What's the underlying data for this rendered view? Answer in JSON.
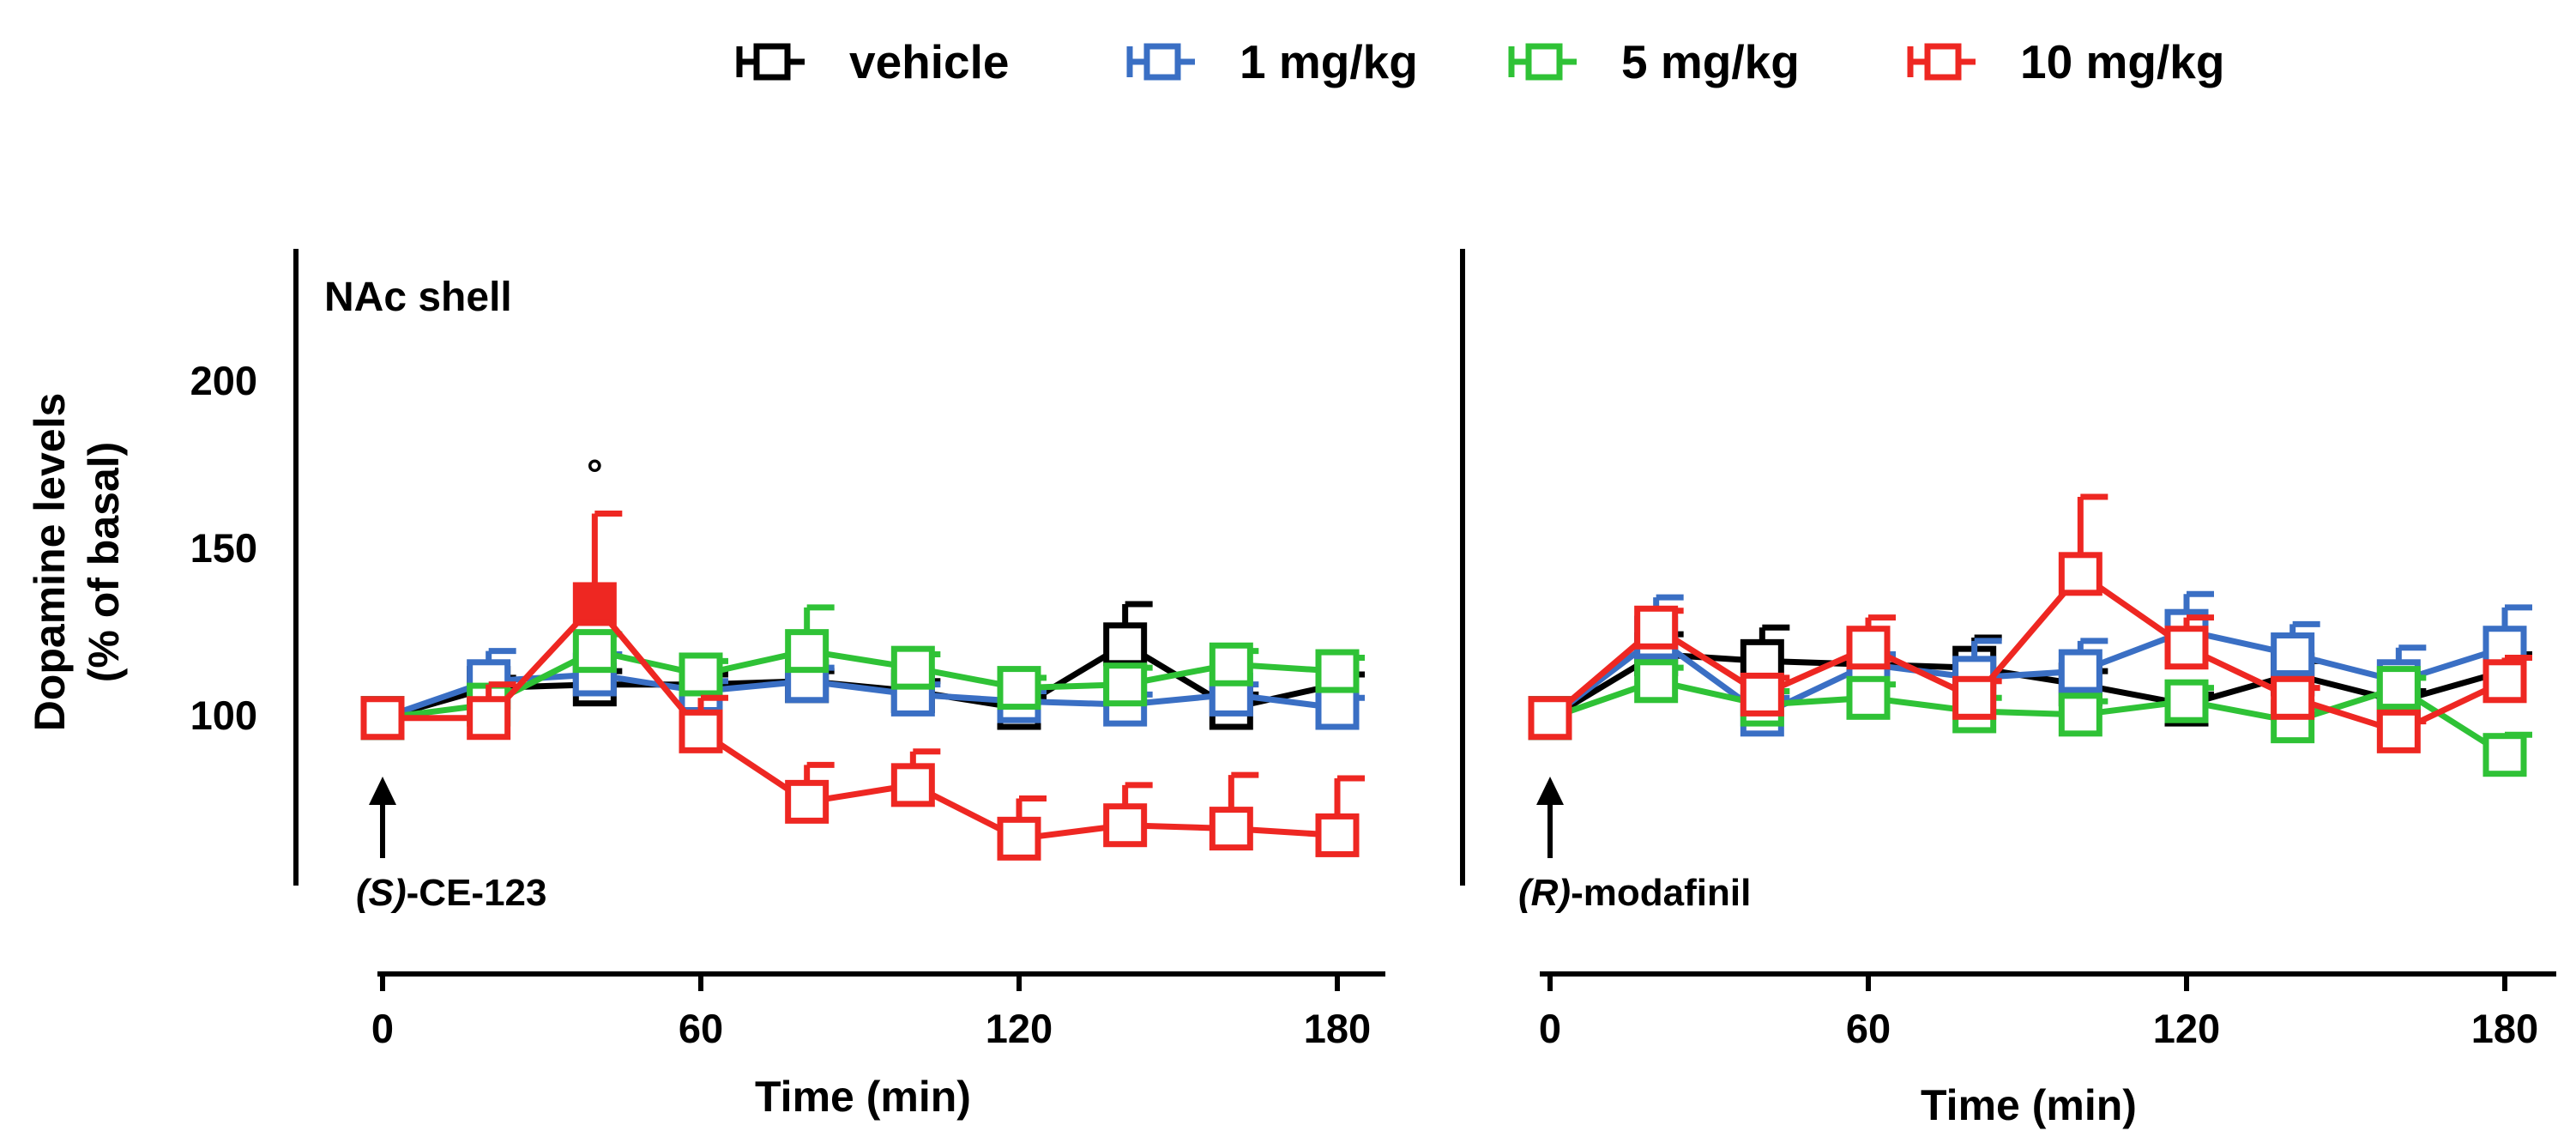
{
  "chart_data": {
    "type": "line",
    "y_axis": {
      "title_line1": "Dopamine levels",
      "title_line2": "(% of basal)",
      "ticks": [
        "100",
        "150",
        "200"
      ],
      "tick_values": [
        100,
        150,
        200
      ],
      "ylim": [
        50,
        240
      ]
    },
    "legend": [
      {
        "name": "vehicle",
        "color": "#000000"
      },
      {
        "name": "1 mg/kg",
        "color": "#3a6fc4"
      },
      {
        "name": "5 mg/kg",
        "color": "#2fc236"
      },
      {
        "name": "10 mg/kg",
        "color": "#ee2722"
      }
    ],
    "panels": [
      {
        "title": "NAc shell",
        "drug_prefix": "(S)",
        "drug_suffix": "-CE-123",
        "xlabel": "Time (min)",
        "x_ticks": [
          "0",
          "60",
          "120",
          "180"
        ],
        "x_tick_values": [
          0,
          60,
          120,
          180
        ],
        "xlim": [
          0,
          180
        ],
        "x": [
          0,
          20,
          40,
          60,
          80,
          100,
          120,
          140,
          160,
          180
        ],
        "series": [
          {
            "name": "vehicle",
            "values": [
              100,
              109,
              110,
              110,
              111,
              108,
              103,
              122,
              103,
              110
            ],
            "errors": [
              0,
              3,
              4,
              3,
              3,
              3,
              3,
              12,
              4,
              3
            ]
          },
          {
            "name": "1 mg/kg",
            "values": [
              100,
              111,
              113,
              108,
              111,
              107,
              105,
              104,
              107,
              103
            ],
            "errors": [
              0,
              9,
              6,
              3,
              4,
              3,
              3,
              3,
              3,
              3
            ]
          },
          {
            "name": "5 mg/kg",
            "values": [
              100,
              104,
              120,
              113,
              120,
              115,
              109,
              110,
              116,
              114
            ],
            "errors": [
              0,
              4,
              5,
              4,
              13,
              4,
              3,
              5,
              4,
              4
            ]
          },
          {
            "name": "10 mg/kg",
            "values": [
              100,
              100,
              134,
              96,
              75,
              80,
              64,
              68,
              67,
              65
            ],
            "errors": [
              0,
              10,
              27,
              10,
              11,
              10,
              12,
              12,
              16,
              17
            ]
          }
        ],
        "significant": [
          {
            "series": "10 mg/kg",
            "x": 40,
            "marker": "°"
          }
        ]
      },
      {
        "title": "",
        "drug_prefix": "(R)",
        "drug_suffix": "-modafinil",
        "xlabel": "Time (min)",
        "x_ticks": [
          "0",
          "60",
          "120",
          "180"
        ],
        "x_tick_values": [
          0,
          60,
          120,
          180
        ],
        "xlim": [
          0,
          180
        ],
        "x": [
          0,
          20,
          40,
          60,
          80,
          100,
          120,
          140,
          160,
          180
        ],
        "series": [
          {
            "name": "vehicle",
            "values": [
              100,
              119,
              117,
              116,
              115,
              110,
              104,
              113,
              105,
              114
            ],
            "errors": [
              0,
              6,
              10,
              3,
              9,
              4,
              3,
              4,
              3,
              5
            ]
          },
          {
            "name": "1 mg/kg",
            "values": [
              100,
              124,
              101,
              116,
              112,
              114,
              126,
              119,
              111,
              121
            ],
            "errors": [
              0,
              12,
              5,
              3,
              11,
              9,
              11,
              9,
              10,
              12
            ]
          },
          {
            "name": "5 mg/kg",
            "values": [
              100,
              111,
              104,
              106,
              102,
              101,
              105,
              99,
              109,
              89
            ],
            "errors": [
              0,
              4,
              4,
              4,
              4,
              4,
              4,
              4,
              3,
              6
            ]
          },
          {
            "name": "10 mg/kg",
            "values": [
              100,
              127,
              107,
              121,
              106,
              143,
              121,
              106,
              96,
              111
            ],
            "errors": [
              0,
              5,
              5,
              9,
              5,
              23,
              9,
              3,
              3,
              7
            ]
          }
        ]
      }
    ]
  }
}
